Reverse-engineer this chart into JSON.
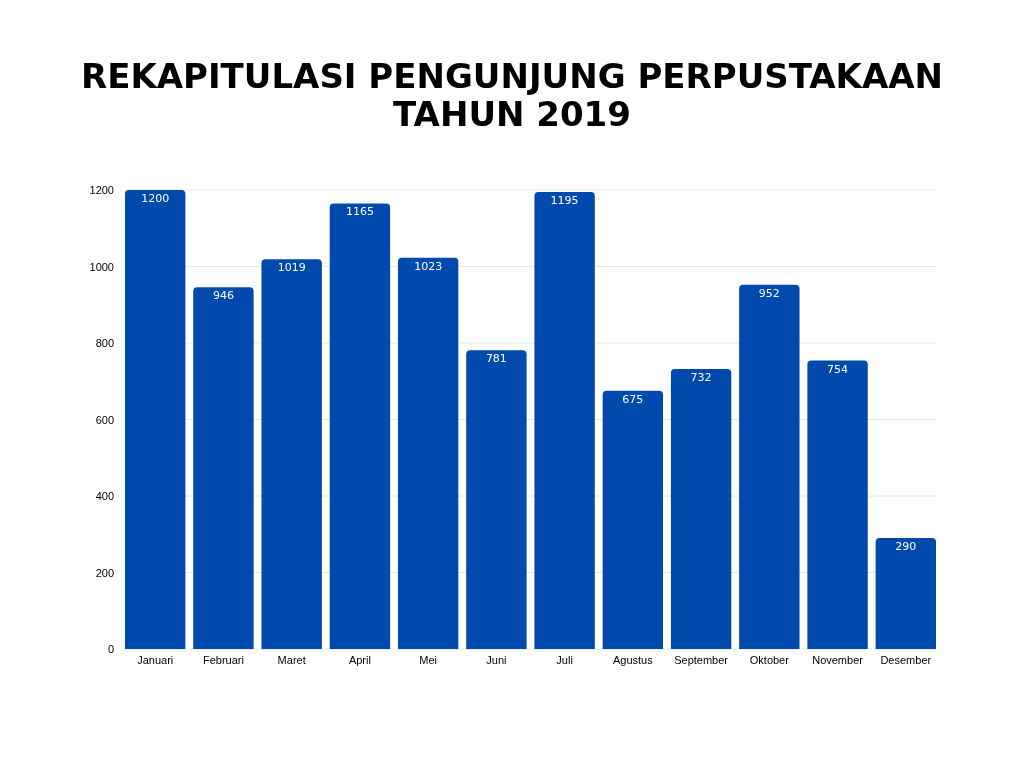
{
  "chart_data": {
    "type": "bar",
    "title": "REKAPITULASI PENGUNJUNG PERPUSTAKAAN TAHUN 2019",
    "categories": [
      "Januari",
      "Februari",
      "Maret",
      "April",
      "Mei",
      "Juni",
      "Juli",
      "Agustus",
      "September",
      "Oktober",
      "November",
      "Desember"
    ],
    "values": [
      1200,
      946,
      1019,
      1165,
      1023,
      781,
      1195,
      675,
      732,
      952,
      754,
      290
    ],
    "color": "#004aad",
    "ylim": [
      0,
      1200
    ],
    "yticks": [
      0,
      200,
      400,
      600,
      800,
      1000,
      1200
    ],
    "grid": "y",
    "data_labels": true
  }
}
